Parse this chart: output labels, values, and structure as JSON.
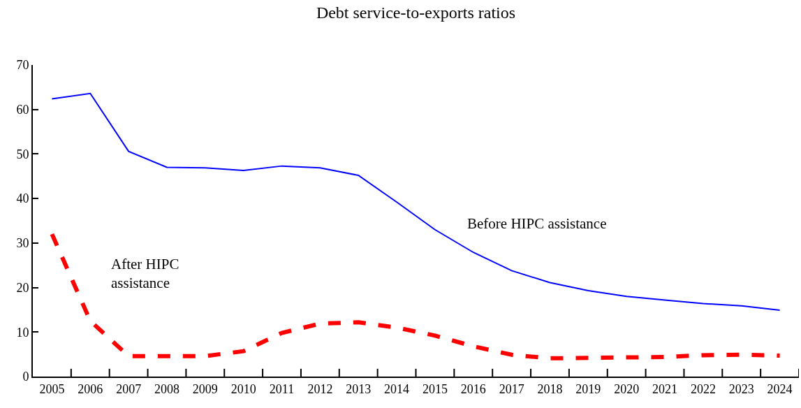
{
  "chart_data": {
    "type": "line",
    "title": "Debt service-to-exports ratios",
    "categories": [
      "2005",
      "2006",
      "2007",
      "2008",
      "2009",
      "2010",
      "2011",
      "2012",
      "2013",
      "2014",
      "2015",
      "2016",
      "2017",
      "2018",
      "2019",
      "2020",
      "2021",
      "2022",
      "2023",
      "2024"
    ],
    "series": [
      {
        "name": "Before HIPC assistance",
        "color": "#0000ff",
        "line_style": "solid",
        "values": [
          62.4,
          63.6,
          50.6,
          47.0,
          46.9,
          46.3,
          47.3,
          46.9,
          45.2,
          39.2,
          33.0,
          27.9,
          23.8,
          21.1,
          19.3,
          18.0,
          17.2,
          16.4,
          15.9,
          14.9
        ]
      },
      {
        "name": "After HIPC assistance",
        "color": "#ff0000",
        "line_style": "dashed",
        "values": [
          32.0,
          12.5,
          4.6,
          4.6,
          4.6,
          5.7,
          9.8,
          11.9,
          12.2,
          11.0,
          9.2,
          6.8,
          4.9,
          4.1,
          4.2,
          4.3,
          4.4,
          4.8,
          4.9,
          4.7
        ]
      }
    ],
    "ylim": [
      0,
      70
    ],
    "yticks": [
      0,
      10,
      20,
      30,
      40,
      50,
      60,
      70
    ],
    "grid": false,
    "legend": false,
    "marker": "none"
  }
}
